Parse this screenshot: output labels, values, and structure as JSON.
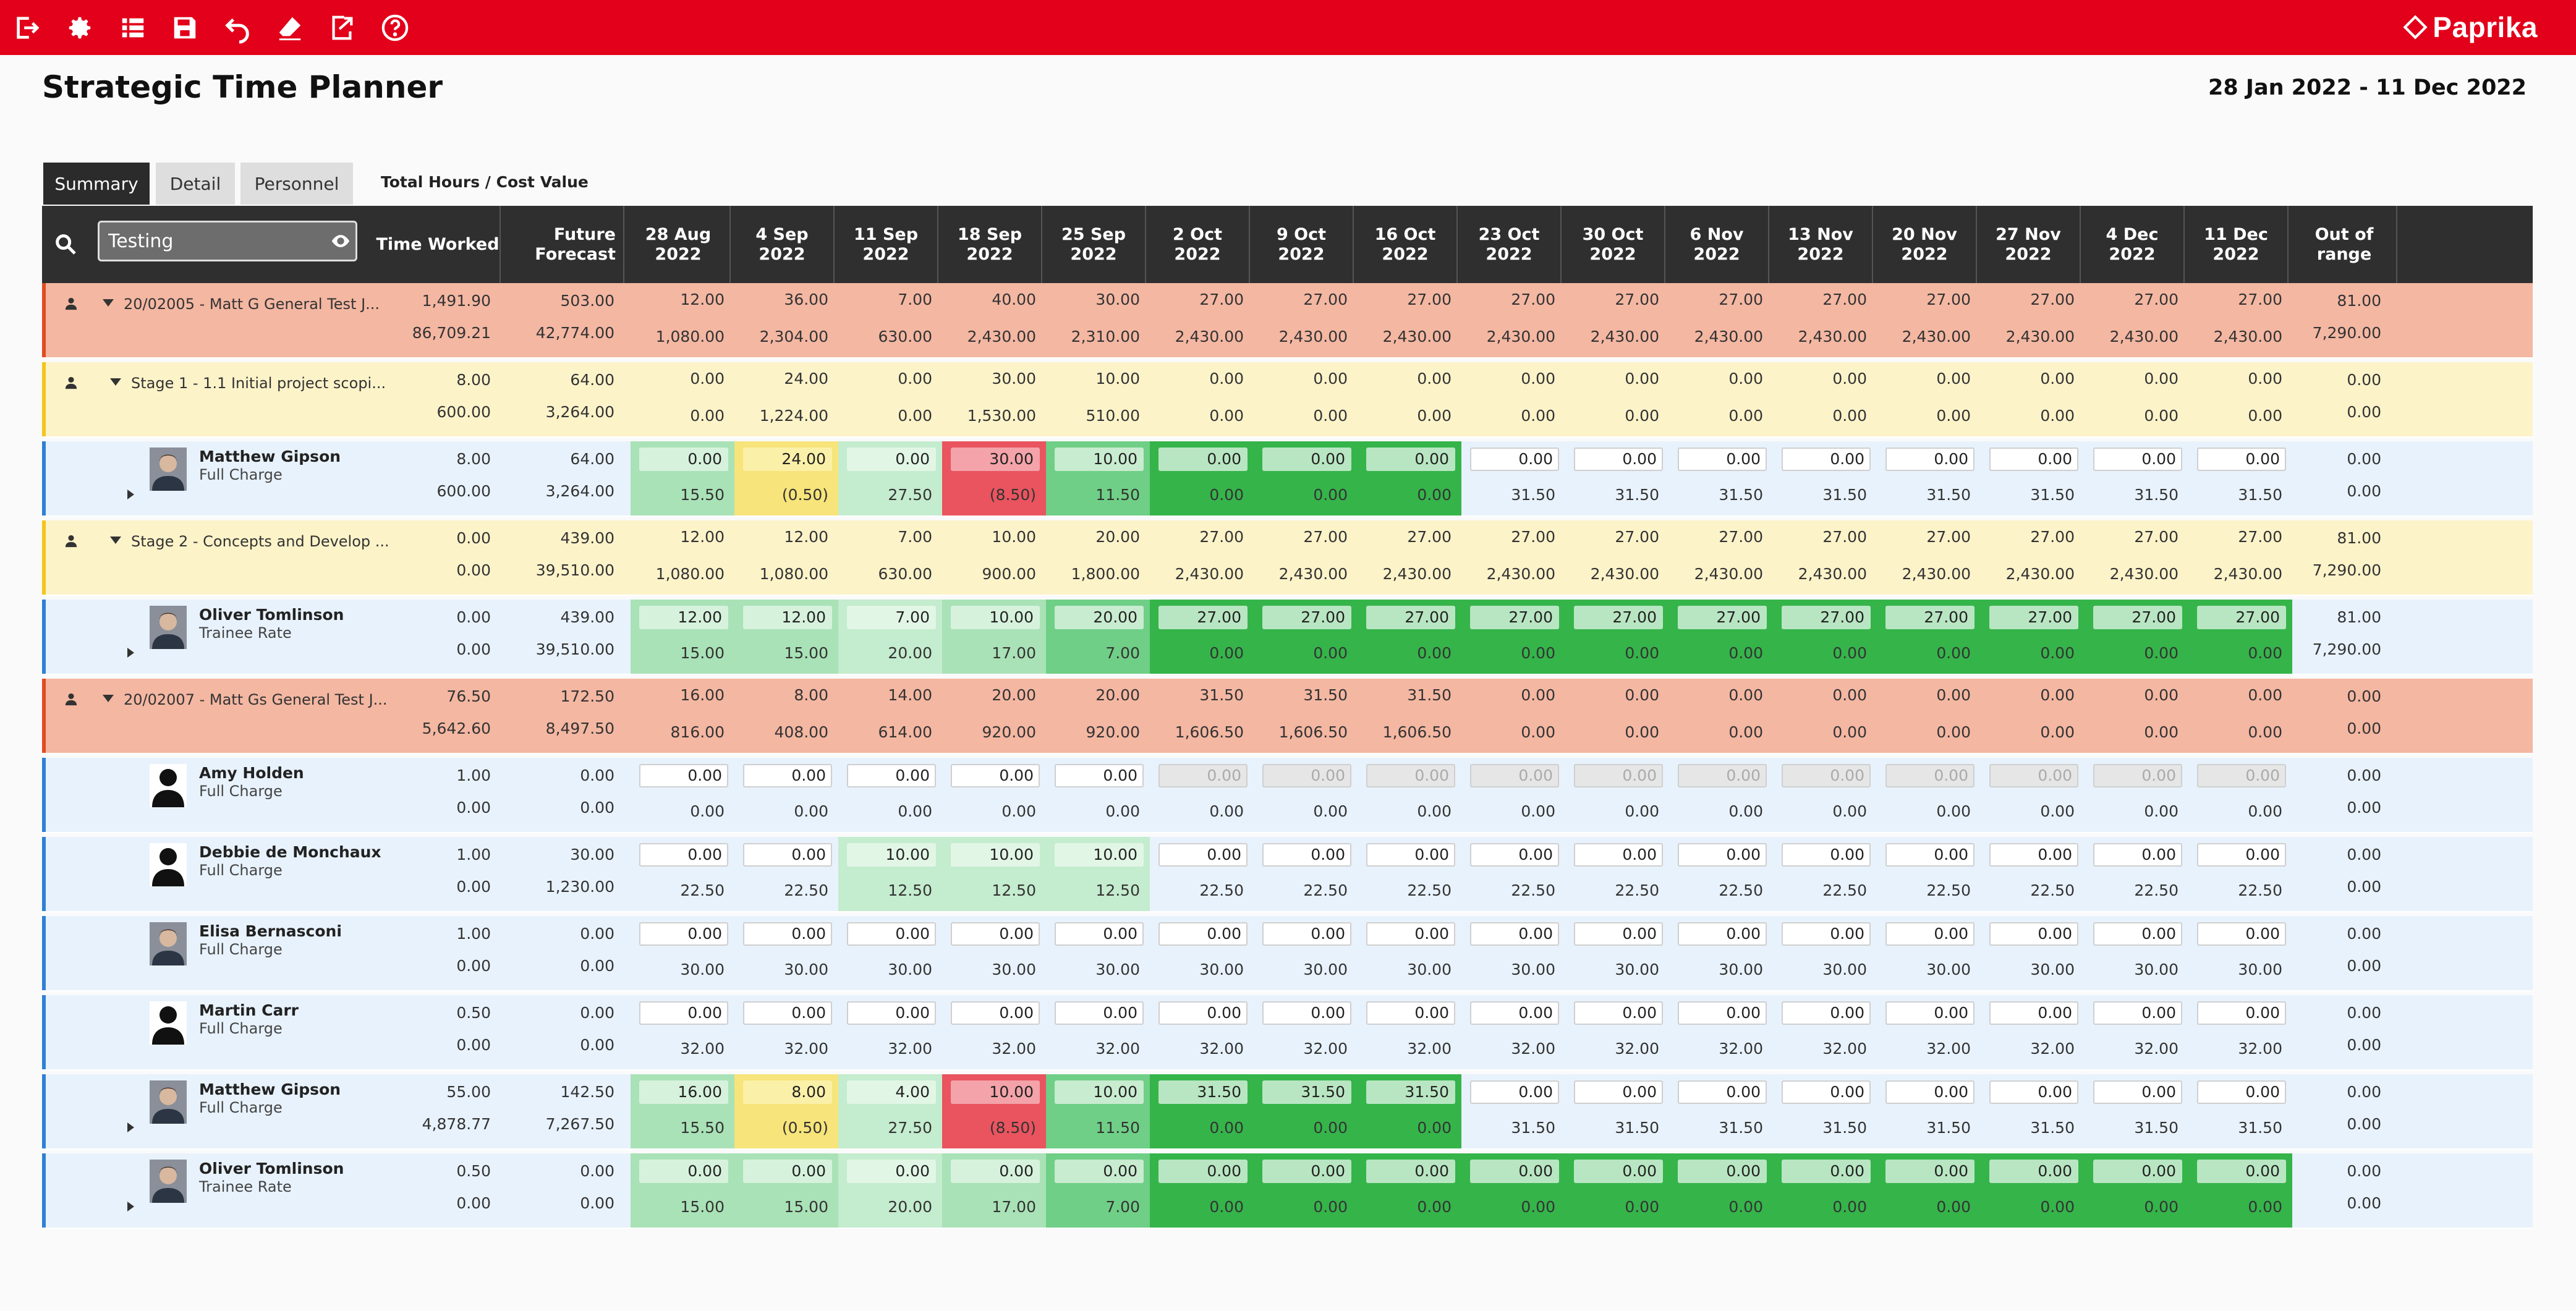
{
  "toolbar": {
    "icons": [
      "exit-icon",
      "gear-icon",
      "list-icon",
      "save-icon",
      "undo-icon",
      "eraser-icon",
      "export-icon",
      "help-icon"
    ],
    "brand": "Paprika",
    "brand_color": "#e2001a"
  },
  "header": {
    "title": "Strategic Time Planner",
    "date_range": "28 Jan 2022 - 11 Dec 2022"
  },
  "tabs": [
    "Summary",
    "Detail",
    "Personnel"
  ],
  "view_mode": "Total Hours / Cost Value",
  "search": {
    "value": "Testing"
  },
  "columns": {
    "time_worked": "Time Worked",
    "future_forecast": "Future Forecast",
    "weeks": [
      {
        "d": "28 Aug",
        "y": "2022"
      },
      {
        "d": "4 Sep",
        "y": "2022"
      },
      {
        "d": "11 Sep",
        "y": "2022"
      },
      {
        "d": "18 Sep",
        "y": "2022"
      },
      {
        "d": "25 Sep",
        "y": "2022"
      },
      {
        "d": "2 Oct",
        "y": "2022"
      },
      {
        "d": "9 Oct",
        "y": "2022"
      },
      {
        "d": "16 Oct",
        "y": "2022"
      },
      {
        "d": "23 Oct",
        "y": "2022"
      },
      {
        "d": "30 Oct",
        "y": "2022"
      },
      {
        "d": "6 Nov",
        "y": "2022"
      },
      {
        "d": "13 Nov",
        "y": "2022"
      },
      {
        "d": "20 Nov",
        "y": "2022"
      },
      {
        "d": "27 Nov",
        "y": "2022"
      },
      {
        "d": "4 Dec",
        "y": "2022"
      },
      {
        "d": "11 Dec",
        "y": "2022"
      }
    ],
    "out_of_range": "Out of range"
  },
  "status_colors": {
    "green_dark": "#35b44a",
    "green_mid": "#6fcf86",
    "green_light": "#a9e2b6",
    "yellow": "#f7e47a",
    "red": "#e9545f"
  },
  "rows": [
    {
      "type": "project",
      "label": "20/02005 - Matt G General Test J...",
      "tw": [
        "1,491.90",
        "86,709.21"
      ],
      "ff": [
        "503.00",
        "42,774.00"
      ],
      "cells": [
        [
          "12.00",
          "1,080.00"
        ],
        [
          "36.00",
          "2,304.00"
        ],
        [
          "7.00",
          "630.00"
        ],
        [
          "40.00",
          "2,430.00"
        ],
        [
          "30.00",
          "2,310.00"
        ],
        [
          "27.00",
          "2,430.00"
        ],
        [
          "27.00",
          "2,430.00"
        ],
        [
          "27.00",
          "2,430.00"
        ],
        [
          "27.00",
          "2,430.00"
        ],
        [
          "27.00",
          "2,430.00"
        ],
        [
          "27.00",
          "2,430.00"
        ],
        [
          "27.00",
          "2,430.00"
        ],
        [
          "27.00",
          "2,430.00"
        ],
        [
          "27.00",
          "2,430.00"
        ],
        [
          "27.00",
          "2,430.00"
        ],
        [
          "27.00",
          "2,430.00"
        ]
      ],
      "oor": [
        "81.00",
        "7,290.00"
      ]
    },
    {
      "type": "stage",
      "label": "Stage 1 - 1.1 Initial project scopi...",
      "tw": [
        "8.00",
        "600.00"
      ],
      "ff": [
        "64.00",
        "3,264.00"
      ],
      "cells": [
        [
          "0.00",
          "0.00"
        ],
        [
          "24.00",
          "1,224.00"
        ],
        [
          "0.00",
          "0.00"
        ],
        [
          "30.00",
          "1,530.00"
        ],
        [
          "10.00",
          "510.00"
        ],
        [
          "0.00",
          "0.00"
        ],
        [
          "0.00",
          "0.00"
        ],
        [
          "0.00",
          "0.00"
        ],
        [
          "0.00",
          "0.00"
        ],
        [
          "0.00",
          "0.00"
        ],
        [
          "0.00",
          "0.00"
        ],
        [
          "0.00",
          "0.00"
        ],
        [
          "0.00",
          "0.00"
        ],
        [
          "0.00",
          "0.00"
        ],
        [
          "0.00",
          "0.00"
        ],
        [
          "0.00",
          "0.00"
        ]
      ],
      "oor": [
        "0.00",
        "0.00"
      ]
    },
    {
      "type": "person",
      "name": "Matthew Gipson",
      "rate": "Full Charge",
      "avatar": "photo",
      "expand": true,
      "tw": [
        "8.00",
        "600.00"
      ],
      "ff": [
        "64.00",
        "3,264.00"
      ],
      "cells": [
        [
          "0.00",
          "15.50",
          "gl"
        ],
        [
          "24.00",
          "(0.50)",
          "y"
        ],
        [
          "0.00",
          "27.50",
          "gx"
        ],
        [
          "30.00",
          "(8.50)",
          "r"
        ],
        [
          "10.00",
          "11.50",
          "gm"
        ],
        [
          "0.00",
          "0.00",
          "gd"
        ],
        [
          "0.00",
          "0.00",
          "gd"
        ],
        [
          "0.00",
          "0.00",
          "gd"
        ],
        [
          "0.00",
          "31.50",
          ""
        ],
        [
          "0.00",
          "31.50",
          ""
        ],
        [
          "0.00",
          "31.50",
          ""
        ],
        [
          "0.00",
          "31.50",
          ""
        ],
        [
          "0.00",
          "31.50",
          ""
        ],
        [
          "0.00",
          "31.50",
          ""
        ],
        [
          "0.00",
          "31.50",
          ""
        ],
        [
          "0.00",
          "31.50",
          ""
        ]
      ],
      "oor": [
        "0.00",
        "0.00"
      ]
    },
    {
      "type": "stage",
      "label": "Stage 2 - Concepts and Develop ...",
      "tw": [
        "0.00",
        "0.00"
      ],
      "ff": [
        "439.00",
        "39,510.00"
      ],
      "cells": [
        [
          "12.00",
          "1,080.00"
        ],
        [
          "12.00",
          "1,080.00"
        ],
        [
          "7.00",
          "630.00"
        ],
        [
          "10.00",
          "900.00"
        ],
        [
          "20.00",
          "1,800.00"
        ],
        [
          "27.00",
          "2,430.00"
        ],
        [
          "27.00",
          "2,430.00"
        ],
        [
          "27.00",
          "2,430.00"
        ],
        [
          "27.00",
          "2,430.00"
        ],
        [
          "27.00",
          "2,430.00"
        ],
        [
          "27.00",
          "2,430.00"
        ],
        [
          "27.00",
          "2,430.00"
        ],
        [
          "27.00",
          "2,430.00"
        ],
        [
          "27.00",
          "2,430.00"
        ],
        [
          "27.00",
          "2,430.00"
        ],
        [
          "27.00",
          "2,430.00"
        ]
      ],
      "oor": [
        "81.00",
        "7,290.00"
      ]
    },
    {
      "type": "person",
      "name": "Oliver Tomlinson",
      "rate": "Trainee Rate",
      "avatar": "photo",
      "expand": true,
      "tw": [
        "0.00",
        "0.00"
      ],
      "ff": [
        "439.00",
        "39,510.00"
      ],
      "cells": [
        [
          "12.00",
          "15.00",
          "gl"
        ],
        [
          "12.00",
          "15.00",
          "gl"
        ],
        [
          "7.00",
          "20.00",
          "gx"
        ],
        [
          "10.00",
          "17.00",
          "gl"
        ],
        [
          "20.00",
          "7.00",
          "gm"
        ],
        [
          "27.00",
          "0.00",
          "gd"
        ],
        [
          "27.00",
          "0.00",
          "gd"
        ],
        [
          "27.00",
          "0.00",
          "gd"
        ],
        [
          "27.00",
          "0.00",
          "gd"
        ],
        [
          "27.00",
          "0.00",
          "gd"
        ],
        [
          "27.00",
          "0.00",
          "gd"
        ],
        [
          "27.00",
          "0.00",
          "gd"
        ],
        [
          "27.00",
          "0.00",
          "gd"
        ],
        [
          "27.00",
          "0.00",
          "gd"
        ],
        [
          "27.00",
          "0.00",
          "gd"
        ],
        [
          "27.00",
          "0.00",
          "gd"
        ]
      ],
      "oor": [
        "81.00",
        "7,290.00"
      ]
    },
    {
      "type": "project",
      "label": "20/02007 - Matt Gs General Test J...",
      "tw": [
        "76.50",
        "5,642.60"
      ],
      "ff": [
        "172.50",
        "8,497.50"
      ],
      "cells": [
        [
          "16.00",
          "816.00"
        ],
        [
          "8.00",
          "408.00"
        ],
        [
          "14.00",
          "614.00"
        ],
        [
          "20.00",
          "920.00"
        ],
        [
          "20.00",
          "920.00"
        ],
        [
          "31.50",
          "1,606.50"
        ],
        [
          "31.50",
          "1,606.50"
        ],
        [
          "31.50",
          "1,606.50"
        ],
        [
          "0.00",
          "0.00"
        ],
        [
          "0.00",
          "0.00"
        ],
        [
          "0.00",
          "0.00"
        ],
        [
          "0.00",
          "0.00"
        ],
        [
          "0.00",
          "0.00"
        ],
        [
          "0.00",
          "0.00"
        ],
        [
          "0.00",
          "0.00"
        ],
        [
          "0.00",
          "0.00"
        ]
      ],
      "oor": [
        "0.00",
        "0.00"
      ]
    },
    {
      "type": "person",
      "name": "Amy Holden",
      "rate": "Full Charge",
      "avatar": "silhouette",
      "expand": false,
      "tw": [
        "1.00",
        "0.00"
      ],
      "ff": [
        "0.00",
        "0.00"
      ],
      "cells": [
        [
          "0.00",
          "0.00",
          ""
        ],
        [
          "0.00",
          "0.00",
          ""
        ],
        [
          "0.00",
          "0.00",
          ""
        ],
        [
          "0.00",
          "0.00",
          ""
        ],
        [
          "0.00",
          "0.00",
          ""
        ],
        [
          "0.00",
          "0.00",
          "dis"
        ],
        [
          "0.00",
          "0.00",
          "dis"
        ],
        [
          "0.00",
          "0.00",
          "dis"
        ],
        [
          "0.00",
          "0.00",
          "dis"
        ],
        [
          "0.00",
          "0.00",
          "dis"
        ],
        [
          "0.00",
          "0.00",
          "dis"
        ],
        [
          "0.00",
          "0.00",
          "dis"
        ],
        [
          "0.00",
          "0.00",
          "dis"
        ],
        [
          "0.00",
          "0.00",
          "dis"
        ],
        [
          "0.00",
          "0.00",
          "dis"
        ],
        [
          "0.00",
          "0.00",
          "dis"
        ]
      ],
      "oor": [
        "0.00",
        "0.00"
      ]
    },
    {
      "type": "person",
      "name": "Debbie de Monchaux",
      "rate": "Full Charge",
      "avatar": "silhouette",
      "expand": false,
      "tw": [
        "1.00",
        "0.00"
      ],
      "ff": [
        "30.00",
        "1,230.00"
      ],
      "cells": [
        [
          "0.00",
          "22.50",
          ""
        ],
        [
          "0.00",
          "22.50",
          ""
        ],
        [
          "10.00",
          "12.50",
          "gx"
        ],
        [
          "10.00",
          "12.50",
          "gx"
        ],
        [
          "10.00",
          "12.50",
          "gx"
        ],
        [
          "0.00",
          "22.50",
          ""
        ],
        [
          "0.00",
          "22.50",
          ""
        ],
        [
          "0.00",
          "22.50",
          ""
        ],
        [
          "0.00",
          "22.50",
          ""
        ],
        [
          "0.00",
          "22.50",
          ""
        ],
        [
          "0.00",
          "22.50",
          ""
        ],
        [
          "0.00",
          "22.50",
          ""
        ],
        [
          "0.00",
          "22.50",
          ""
        ],
        [
          "0.00",
          "22.50",
          ""
        ],
        [
          "0.00",
          "22.50",
          ""
        ],
        [
          "0.00",
          "22.50",
          ""
        ]
      ],
      "oor": [
        "0.00",
        "0.00"
      ]
    },
    {
      "type": "person",
      "name": "Elisa Bernasconi",
      "rate": "Full Charge",
      "avatar": "photo",
      "expand": false,
      "tw": [
        "1.00",
        "0.00"
      ],
      "ff": [
        "0.00",
        "0.00"
      ],
      "cells": [
        [
          "0.00",
          "30.00",
          ""
        ],
        [
          "0.00",
          "30.00",
          ""
        ],
        [
          "0.00",
          "30.00",
          ""
        ],
        [
          "0.00",
          "30.00",
          ""
        ],
        [
          "0.00",
          "30.00",
          ""
        ],
        [
          "0.00",
          "30.00",
          ""
        ],
        [
          "0.00",
          "30.00",
          ""
        ],
        [
          "0.00",
          "30.00",
          ""
        ],
        [
          "0.00",
          "30.00",
          ""
        ],
        [
          "0.00",
          "30.00",
          ""
        ],
        [
          "0.00",
          "30.00",
          ""
        ],
        [
          "0.00",
          "30.00",
          ""
        ],
        [
          "0.00",
          "30.00",
          ""
        ],
        [
          "0.00",
          "30.00",
          ""
        ],
        [
          "0.00",
          "30.00",
          ""
        ],
        [
          "0.00",
          "30.00",
          ""
        ]
      ],
      "oor": [
        "0.00",
        "0.00"
      ]
    },
    {
      "type": "person",
      "name": "Martin Carr",
      "rate": "Full Charge",
      "avatar": "silhouette",
      "expand": false,
      "tw": [
        "0.50",
        "0.00"
      ],
      "ff": [
        "0.00",
        "0.00"
      ],
      "cells": [
        [
          "0.00",
          "32.00",
          ""
        ],
        [
          "0.00",
          "32.00",
          ""
        ],
        [
          "0.00",
          "32.00",
          ""
        ],
        [
          "0.00",
          "32.00",
          ""
        ],
        [
          "0.00",
          "32.00",
          ""
        ],
        [
          "0.00",
          "32.00",
          ""
        ],
        [
          "0.00",
          "32.00",
          ""
        ],
        [
          "0.00",
          "32.00",
          ""
        ],
        [
          "0.00",
          "32.00",
          ""
        ],
        [
          "0.00",
          "32.00",
          ""
        ],
        [
          "0.00",
          "32.00",
          ""
        ],
        [
          "0.00",
          "32.00",
          ""
        ],
        [
          "0.00",
          "32.00",
          ""
        ],
        [
          "0.00",
          "32.00",
          ""
        ],
        [
          "0.00",
          "32.00",
          ""
        ],
        [
          "0.00",
          "32.00",
          ""
        ]
      ],
      "oor": [
        "0.00",
        "0.00"
      ]
    },
    {
      "type": "person",
      "name": "Matthew Gipson",
      "rate": "Full Charge",
      "avatar": "photo",
      "expand": true,
      "tw": [
        "55.00",
        "4,878.77"
      ],
      "ff": [
        "142.50",
        "7,267.50"
      ],
      "cells": [
        [
          "16.00",
          "15.50",
          "gl"
        ],
        [
          "8.00",
          "(0.50)",
          "y"
        ],
        [
          "4.00",
          "27.50",
          "gx"
        ],
        [
          "10.00",
          "(8.50)",
          "r"
        ],
        [
          "10.00",
          "11.50",
          "gm"
        ],
        [
          "31.50",
          "0.00",
          "gd"
        ],
        [
          "31.50",
          "0.00",
          "gd"
        ],
        [
          "31.50",
          "0.00",
          "gd"
        ],
        [
          "0.00",
          "31.50",
          ""
        ],
        [
          "0.00",
          "31.50",
          ""
        ],
        [
          "0.00",
          "31.50",
          ""
        ],
        [
          "0.00",
          "31.50",
          ""
        ],
        [
          "0.00",
          "31.50",
          ""
        ],
        [
          "0.00",
          "31.50",
          ""
        ],
        [
          "0.00",
          "31.50",
          ""
        ],
        [
          "0.00",
          "31.50",
          ""
        ]
      ],
      "oor": [
        "0.00",
        "0.00"
      ]
    },
    {
      "type": "person",
      "name": "Oliver Tomlinson",
      "rate": "Trainee Rate",
      "avatar": "photo",
      "expand": true,
      "tw": [
        "0.50",
        "0.00"
      ],
      "ff": [
        "0.00",
        "0.00"
      ],
      "cells": [
        [
          "0.00",
          "15.00",
          "gl"
        ],
        [
          "0.00",
          "15.00",
          "gl"
        ],
        [
          "0.00",
          "20.00",
          "gx"
        ],
        [
          "0.00",
          "17.00",
          "gl"
        ],
        [
          "0.00",
          "7.00",
          "gm"
        ],
        [
          "0.00",
          "0.00",
          "gd"
        ],
        [
          "0.00",
          "0.00",
          "gd"
        ],
        [
          "0.00",
          "0.00",
          "gd"
        ],
        [
          "0.00",
          "0.00",
          "gd"
        ],
        [
          "0.00",
          "0.00",
          "gd"
        ],
        [
          "0.00",
          "0.00",
          "gd"
        ],
        [
          "0.00",
          "0.00",
          "gd"
        ],
        [
          "0.00",
          "0.00",
          "gd"
        ],
        [
          "0.00",
          "0.00",
          "gd"
        ],
        [
          "0.00",
          "0.00",
          "gd"
        ],
        [
          "0.00",
          "0.00",
          "gd"
        ]
      ],
      "oor": [
        "0.00",
        "0.00"
      ]
    }
  ]
}
